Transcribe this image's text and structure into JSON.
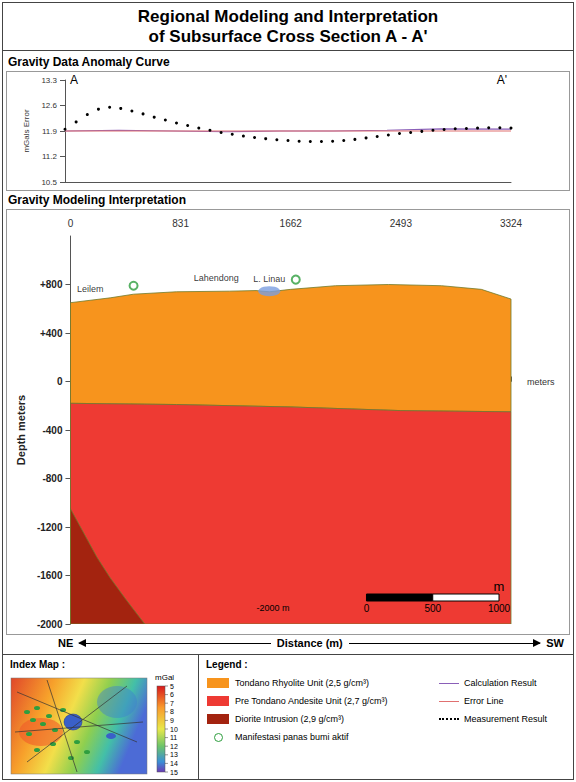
{
  "page_title": [
    "Regional Modeling and Interpretation",
    "of Subsurface Cross Section A - A'"
  ],
  "chart_data": [
    {
      "type": "line",
      "title": "Gravity Data Anomaly Curve",
      "y_label": "mGals Error",
      "start_label": "A",
      "end_label": "A'",
      "xlim": [
        0,
        3324
      ],
      "ylim": [
        10.5,
        13.3
      ],
      "yticks": [
        10.5,
        11.2,
        11.9,
        12.6,
        13.3
      ],
      "grid": false,
      "tick_labels": "y",
      "series": [
        {
          "name": "Calculation Result",
          "color": "#8a5fb8",
          "line_style": "solid",
          "marker": "none",
          "x": [
            0,
            400,
            800,
            1200,
            1600,
            2000,
            2400,
            2800,
            3324
          ],
          "values": [
            11.9,
            11.92,
            11.9,
            11.88,
            11.9,
            11.9,
            11.92,
            11.96,
            11.95
          ]
        },
        {
          "name": "Error Line",
          "color": "#e07070",
          "line_style": "solid",
          "marker": "none",
          "x": [
            0,
            3324
          ],
          "values": [
            11.9,
            11.9
          ]
        },
        {
          "name": "Measurement Result",
          "color": "#000000",
          "line_style": "none",
          "marker": "dot",
          "x": [
            0,
            83.1,
            166.2,
            249.3,
            332.4,
            415.5,
            498.6,
            581.7,
            664.8,
            747.9,
            831,
            914.1,
            997.2,
            1080.3,
            1163.4,
            1246.5,
            1329.6,
            1412.7,
            1495.8,
            1578.9,
            1662,
            1745.1,
            1828.2,
            1911.3,
            1994.4,
            2077.5,
            2160.6,
            2243.7,
            2326.8,
            2409.9,
            2493,
            2576.1,
            2659.2,
            2742.3,
            2825.4,
            2908.5,
            2991.6,
            3074.7,
            3157.8,
            3240.9,
            3324
          ],
          "values": [
            11.95,
            12.15,
            12.35,
            12.5,
            12.55,
            12.52,
            12.45,
            12.37,
            12.28,
            12.2,
            12.12,
            12.05,
            11.98,
            11.92,
            11.86,
            11.81,
            11.76,
            11.72,
            11.69,
            11.66,
            11.64,
            11.62,
            11.61,
            11.61,
            11.62,
            11.64,
            11.67,
            11.71,
            11.75,
            11.79,
            11.83,
            11.86,
            11.89,
            11.92,
            11.94,
            11.96,
            11.97,
            11.98,
            11.99,
            11.99,
            11.98
          ]
        }
      ]
    },
    {
      "type": "polygon",
      "title": "Gravity Modeling Interpretation",
      "x_label": "meters",
      "y_label": "Depth meters",
      "xlim": [
        0,
        3324
      ],
      "xticks": [
        0,
        831,
        1662,
        2493,
        3324
      ],
      "ylim": [
        -2000,
        1200
      ],
      "yticks": [
        {
          "value": 800,
          "label": "+800"
        },
        {
          "value": 400,
          "label": "+400"
        },
        0,
        -400,
        -800,
        -1200,
        -1600,
        -2000
      ],
      "grid": false,
      "units": [
        {
          "name": "Tondano Rhyolite Unit (2,5 g/cm³)",
          "color": "#f7941d",
          "polygon": [
            [
              0,
              650
            ],
            [
              300,
              690
            ],
            [
              476,
              720
            ],
            [
              800,
              740
            ],
            [
              1200,
              745
            ],
            [
              1400,
              750
            ],
            [
              1500,
              740
            ],
            [
              1662,
              760
            ],
            [
              2000,
              790
            ],
            [
              2400,
              800
            ],
            [
              2800,
              790
            ],
            [
              3100,
              760
            ],
            [
              3324,
              680
            ],
            [
              3324,
              -250
            ],
            [
              2493,
              -240
            ],
            [
              1662,
              -210
            ],
            [
              800,
              -190
            ],
            [
              0,
              -180
            ]
          ]
        },
        {
          "name": "Pre Tondano Andesite Unit (2,7 g/cm³)",
          "color": "#ee3a33",
          "polygon": [
            [
              0,
              -180
            ],
            [
              800,
              -190
            ],
            [
              1662,
              -210
            ],
            [
              2493,
              -240
            ],
            [
              3324,
              -250
            ],
            [
              3324,
              -2000
            ],
            [
              0,
              -2000
            ]
          ]
        },
        {
          "name": "Diorite Intrusion (2,9 g/cm³)",
          "color": "#a3230f",
          "polygon": [
            [
              0,
              -1050
            ],
            [
              100,
              -1250
            ],
            [
              200,
              -1450
            ],
            [
              300,
              -1620
            ],
            [
              420,
              -1800
            ],
            [
              560,
              -2000
            ],
            [
              0,
              -2000
            ]
          ]
        }
      ],
      "lake": {
        "name": "L. Linau",
        "x": 1500,
        "y": 745,
        "color": "#7b9de0"
      },
      "manifestations": {
        "name": "Manifestasi panas bumi aktif",
        "color": "#2e9e3e",
        "points": [
          [
            476,
            790
          ],
          [
            1700,
            840
          ]
        ]
      },
      "places": [
        {
          "name": "Leilem",
          "x": 150,
          "y": 760
        },
        {
          "name": "Lahendong",
          "x": 1100,
          "y": 850
        }
      ],
      "annotation": "-2000 m",
      "scale_bar": {
        "ticks": [
          0,
          500,
          1000
        ],
        "unit": "m"
      },
      "direction": {
        "left": "NE",
        "label": "Distance (m)",
        "right": "SW"
      }
    }
  ],
  "index_map": {
    "title": "Index Map :",
    "colorbar": {
      "label": "mGal",
      "range": [
        5,
        15
      ],
      "ticks": [
        5,
        6,
        7,
        8,
        9,
        10,
        11,
        12,
        13,
        14,
        15
      ]
    }
  },
  "legend_title": "Legend :"
}
